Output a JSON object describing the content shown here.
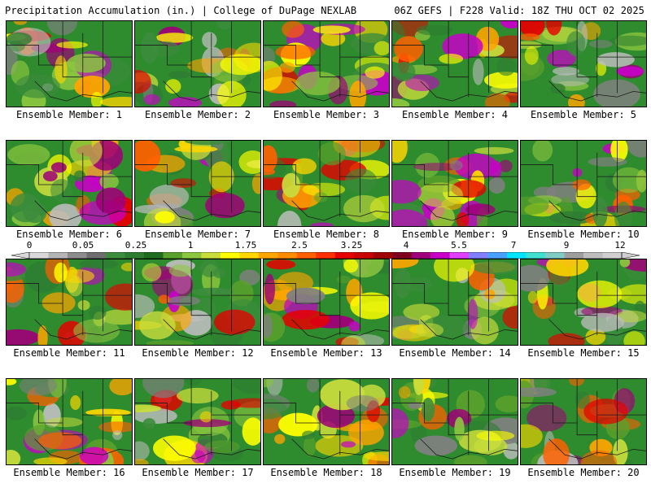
{
  "header": {
    "title": "Precipitation Accumulation (in.) | College of DuPage NEXLAB",
    "run_info": "06Z GEFS | F228 Valid: 18Z THU OCT 02 2025"
  },
  "panels": [
    {
      "label": "Ensemble Member: 1"
    },
    {
      "label": "Ensemble Member: 2"
    },
    {
      "label": "Ensemble Member: 3"
    },
    {
      "label": "Ensemble Member: 4"
    },
    {
      "label": "Ensemble Member: 5"
    },
    {
      "label": "Ensemble Member: 6"
    },
    {
      "label": "Ensemble Member: 7"
    },
    {
      "label": "Ensemble Member: 8"
    },
    {
      "label": "Ensemble Member: 9"
    },
    {
      "label": "Ensemble Member: 10"
    },
    {
      "label": "Ensemble Member: 11"
    },
    {
      "label": "Ensemble Member: 12"
    },
    {
      "label": "Ensemble Member: 13"
    },
    {
      "label": "Ensemble Member: 14"
    },
    {
      "label": "Ensemble Member: 15"
    },
    {
      "label": "Ensemble Member: 16"
    },
    {
      "label": "Ensemble Member: 17"
    },
    {
      "label": "Ensemble Member: 18"
    },
    {
      "label": "Ensemble Member: 19"
    },
    {
      "label": "Ensemble Member: 20"
    }
  ],
  "colorbar": {
    "tick_labels": [
      "0",
      "0.05",
      "0.25",
      "1",
      "1.75",
      "2.5",
      "3.25",
      "4",
      "5.5",
      "7",
      "9",
      "12"
    ],
    "colors": [
      "#d9d9d9",
      "#b4b4b4",
      "#8c8c8c",
      "#6e6e6e",
      "#3c8c3c",
      "#2e7d32",
      "#1f6b1f",
      "#5aa02c",
      "#8cc63f",
      "#c8dc3c",
      "#ffff00",
      "#ffd700",
      "#ffa500",
      "#ff8c00",
      "#ff6000",
      "#ff3000",
      "#e60000",
      "#c80000",
      "#a00000",
      "#800020",
      "#a0007a",
      "#c800c8",
      "#e040fb",
      "#8080ff",
      "#4aa0ff",
      "#00e5ff",
      "#40e0d0",
      "#80cbc4",
      "#9e9e9e",
      "#bdbdbd",
      "#cfcfcf"
    ]
  }
}
